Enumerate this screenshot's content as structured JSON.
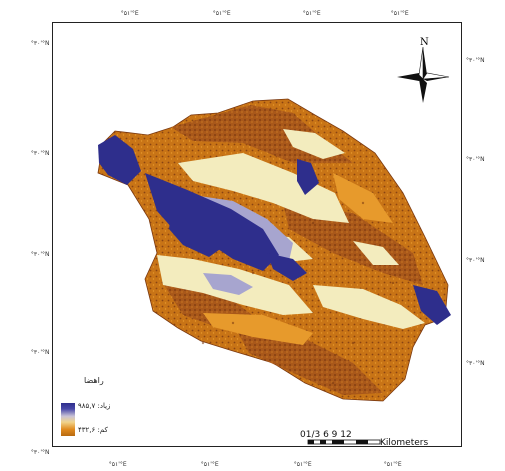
{
  "map": {
    "north_label": "N",
    "legend": {
      "title": "راهضا",
      "high_label": "زیاد: ۹۸۵,۷",
      "low_label": "کم: ۴۳۲,۶",
      "high_color": "#2e2e8c",
      "low_color": "#b86a10"
    },
    "scale": {
      "numbers": "01/3 6 9 12",
      "unit": "Kilometers"
    },
    "graticule": {
      "top": [
        "°۵۱'°E",
        "°۵۱'°E",
        "°۵۱'°E",
        "°۵۱'°E"
      ],
      "bottom": [
        "°۵۱'°E",
        "°۵۱'°E",
        "°۵۱'°E",
        "°۵۱'°E"
      ],
      "left": [
        "°۳۰'°N",
        "°۳۰'°N",
        "°۳۰'°N",
        "°۳۰'°N",
        "°۳۰'°N"
      ],
      "right": [
        "°۳۰'°N",
        "°۳۰'°N",
        "°۳۰'°N",
        "°۳۰'°N"
      ]
    },
    "colors": {
      "very_high": "#2e2e8c",
      "high": "#a7a5cf",
      "moderate": "#f3ecbe",
      "low": "#e0901e",
      "very_low": "#a9581a"
    }
  }
}
